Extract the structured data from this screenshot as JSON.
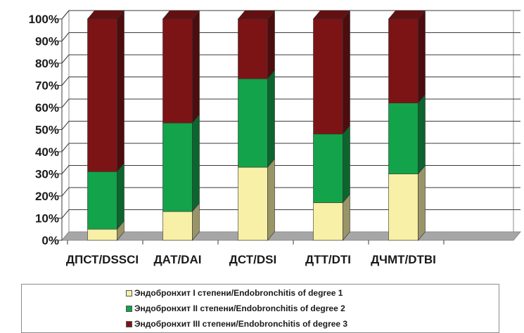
{
  "chart_data": {
    "type": "bar",
    "stacked": true,
    "three_d": true,
    "title": "",
    "xlabel": "",
    "ylabel": "",
    "ylim": [
      0,
      100
    ],
    "y_ticks": [
      "0%",
      "10%",
      "20%",
      "30%",
      "40%",
      "50%",
      "60%",
      "70%",
      "80%",
      "90%",
      "100%"
    ],
    "grid": true,
    "legend_position": "bottom",
    "categories": [
      "ДПСТ/DSSCI",
      "ДАТ/DAI",
      "ДСТ/DSI",
      "ДТТ/DTI",
      "ДЧМТ/DTBI"
    ],
    "series": [
      {
        "name": "Эндобронхит I степени/Endobronchitis of degree 1",
        "values": [
          5,
          13,
          33,
          17,
          30
        ],
        "color": "#f7f0a6"
      },
      {
        "name": "Эндобронхит II степени/Endobronchitis of degree 2",
        "values": [
          26,
          40,
          40,
          31,
          32
        ],
        "color": "#13a34a"
      },
      {
        "name": "Эндобронхит III степени/Endobronchitis of degree 3",
        "values": [
          69,
          47,
          27,
          52,
          38
        ],
        "color": "#7c1416"
      }
    ]
  }
}
